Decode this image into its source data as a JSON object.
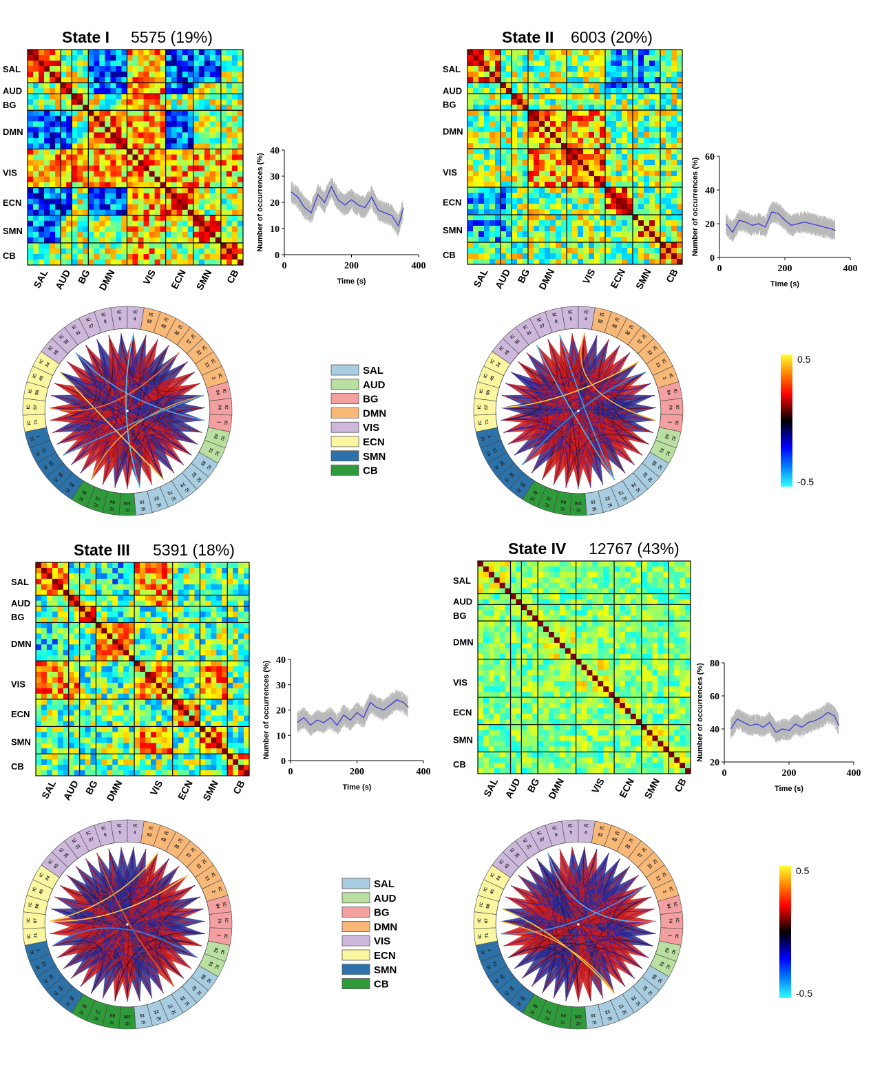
{
  "chart_data": {
    "type": "heatmap",
    "value_range": [
      -0.5,
      0.5
    ],
    "networks": [
      "SAL",
      "AUD",
      "BG",
      "DMN",
      "VIS",
      "ECN",
      "SMN",
      "CB"
    ],
    "network_colors": {
      "SAL": "#a8cce0",
      "AUD": "#b9e0a0",
      "BG": "#f4a0a0",
      "DMN": "#f8b878",
      "VIS": "#cdb8dc",
      "ECN": "#fbf7a0",
      "SMN": "#2c72a8",
      "CB": "#2f9a3a"
    },
    "connectogram_ic_order": [
      {
        "ic": "5",
        "net": "VIS"
      },
      {
        "ic": "4",
        "net": "VIS"
      },
      {
        "ic": "82",
        "net": "DMN"
      },
      {
        "ic": "48",
        "net": "DMN"
      },
      {
        "ic": "38",
        "net": "DMN"
      },
      {
        "ic": "37",
        "net": "DMN"
      },
      {
        "ic": "33",
        "net": "DMN"
      },
      {
        "ic": "13",
        "net": "DMN"
      },
      {
        "ic": "2",
        "net": "DMN"
      },
      {
        "ic": "94",
        "net": "BG"
      },
      {
        "ic": "74",
        "net": "BG"
      },
      {
        "ic": "1",
        "net": "BG"
      },
      {
        "ic": "52",
        "net": "AUD"
      },
      {
        "ic": "51",
        "net": "AUD"
      },
      {
        "ic": "85",
        "net": "SAL"
      },
      {
        "ic": "87",
        "net": "SAL"
      },
      {
        "ic": "79",
        "net": "SAL"
      },
      {
        "ic": "72",
        "net": "SAL"
      },
      {
        "ic": "22",
        "net": "SAL"
      },
      {
        "ic": "15",
        "net": "SAL"
      },
      {
        "ic": "100",
        "net": "CB"
      },
      {
        "ic": "84",
        "net": "CB"
      },
      {
        "ic": "73",
        "net": "CB"
      },
      {
        "ic": "46",
        "net": "CB"
      },
      {
        "ic": "80",
        "net": "SMN"
      },
      {
        "ic": "56",
        "net": "SMN"
      },
      {
        "ic": "39",
        "net": "SMN"
      },
      {
        "ic": "12",
        "net": "SMN"
      },
      {
        "ic": "7",
        "net": "SMN"
      },
      {
        "ic": "71",
        "net": "ECN"
      },
      {
        "ic": "67",
        "net": "ECN"
      },
      {
        "ic": "66",
        "net": "ECN"
      },
      {
        "ic": "45",
        "net": "ECN"
      },
      {
        "ic": "34",
        "net": "ECN"
      },
      {
        "ic": "43",
        "net": "VIS"
      },
      {
        "ic": "35",
        "net": "VIS"
      },
      {
        "ic": "31",
        "net": "VIS"
      },
      {
        "ic": "27",
        "net": "VIS"
      },
      {
        "ic": "8",
        "net": "VIS"
      }
    ],
    "timeseries_xlabel": "Time (s)",
    "timeseries_ylabel": "Number of occurrences (%)",
    "timeseries_xlim": [
      0,
      400
    ],
    "timeseries_xticks": [
      0,
      200,
      400
    ],
    "states": [
      {
        "name": "State I",
        "count": "5575 (19%)",
        "ylim": [
          0,
          40
        ],
        "yticks": [
          0,
          10,
          20,
          30,
          40
        ],
        "mean_series": {
          "t": [
            20,
            40,
            60,
            80,
            100,
            120,
            140,
            160,
            180,
            200,
            220,
            240,
            260,
            280,
            300,
            320,
            340,
            355
          ],
          "v": [
            24,
            22,
            18,
            16,
            23,
            20,
            26,
            21,
            19,
            21,
            19,
            18,
            22,
            17,
            16,
            15,
            11,
            18
          ]
        }
      },
      {
        "name": "State II",
        "count": "6003 (20%)",
        "ylim": [
          0,
          60
        ],
        "yticks": [
          0,
          20,
          40,
          60
        ],
        "mean_series": {
          "t": [
            20,
            40,
            60,
            80,
            100,
            120,
            140,
            160,
            180,
            200,
            220,
            240,
            260,
            280,
            300,
            320,
            340,
            355
          ],
          "v": [
            20,
            15,
            22,
            21,
            19,
            20,
            18,
            27,
            26,
            22,
            19,
            20,
            21,
            20,
            19,
            18,
            17,
            16
          ]
        }
      },
      {
        "name": "State III",
        "count": "5391 (18%)",
        "ylim": [
          0,
          40
        ],
        "yticks": [
          0,
          10,
          20,
          30,
          40
        ],
        "mean_series": {
          "t": [
            20,
            40,
            60,
            80,
            100,
            120,
            140,
            160,
            180,
            200,
            220,
            240,
            260,
            280,
            300,
            320,
            340,
            355
          ],
          "v": [
            15,
            17,
            14,
            16,
            15,
            17,
            14,
            18,
            16,
            19,
            17,
            23,
            21,
            20,
            22,
            24,
            23,
            21
          ]
        }
      },
      {
        "name": "State IV",
        "count": "12767 (43%)",
        "ylim": [
          20,
          80
        ],
        "yticks": [
          20,
          40,
          60,
          80
        ],
        "mean_series": {
          "t": [
            20,
            40,
            60,
            80,
            100,
            120,
            140,
            160,
            180,
            200,
            220,
            240,
            260,
            280,
            300,
            320,
            340,
            355
          ],
          "v": [
            40,
            46,
            44,
            42,
            43,
            41,
            44,
            38,
            40,
            39,
            43,
            41,
            44,
            45,
            47,
            50,
            48,
            42
          ]
        }
      }
    ],
    "colorbar": {
      "max_label": "0.5",
      "min_label": "-0.5"
    }
  }
}
